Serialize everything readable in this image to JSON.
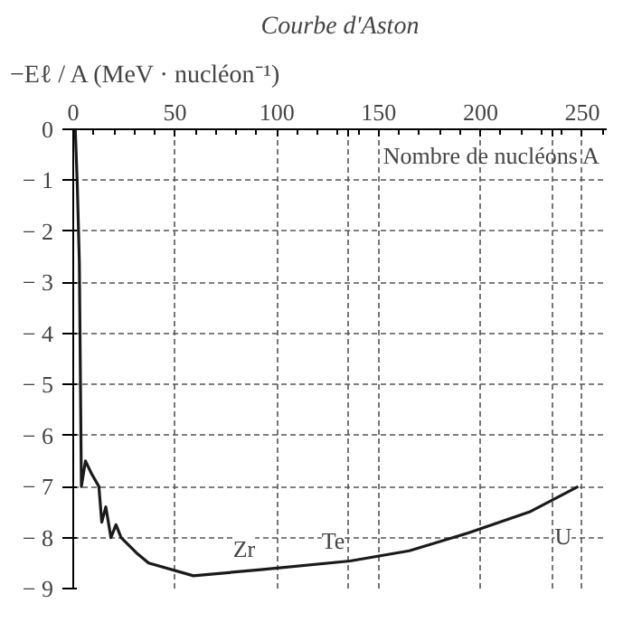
{
  "chart_data": {
    "type": "line",
    "title": "Courbe d'Aston",
    "ylabel": "−Eℓ / A (MeV · nucléon⁻¹)",
    "xlabel": "Nombre de nucléons A",
    "x": [
      1,
      2,
      3,
      4,
      6,
      9,
      12.6,
      14,
      16,
      18.5,
      21,
      23.5,
      31,
      37,
      59,
      92,
      136,
      165,
      194,
      224,
      248
    ],
    "series": [
      {
        "color": "#1a1a1a",
        "values": [
          0,
          -1.1,
          -2.6,
          -7.0,
          -6.5,
          -6.75,
          -7.0,
          -7.7,
          -7.4,
          -8.0,
          -7.75,
          -8.0,
          -8.3,
          -8.5,
          -8.75,
          -8.63,
          -8.46,
          -8.26,
          -7.91,
          -7.5,
          -7.0
        ]
      }
    ],
    "xlim": [
      0,
      262
    ],
    "ylim": [
      -9,
      0
    ],
    "xticks": [
      0,
      50,
      100,
      {
        "value": 135,
        "label": null
      },
      150,
      200,
      {
        "value": 235,
        "label": null
      },
      250
    ],
    "yticks": [
      0,
      {
        "value": -1,
        "label": "− 1"
      },
      {
        "value": -2,
        "label": "− 2"
      },
      {
        "value": -3,
        "label": "− 3"
      },
      {
        "value": -4,
        "label": "− 4"
      },
      {
        "value": -5,
        "label": "− 5"
      },
      {
        "value": -6,
        "label": "− 6"
      },
      {
        "value": -7,
        "label": "− 7"
      },
      {
        "value": -8,
        "label": "− 8"
      },
      {
        "value": -9,
        "label": "− 9"
      }
    ],
    "grid": true,
    "line_style": "solid",
    "annotations": [
      {
        "text": "Zr",
        "x": 92,
        "y": -8.63
      },
      {
        "text": "Te",
        "x": 136,
        "y": -8.46
      },
      {
        "text": "U",
        "x": 224,
        "y": -7.5
      }
    ]
  }
}
